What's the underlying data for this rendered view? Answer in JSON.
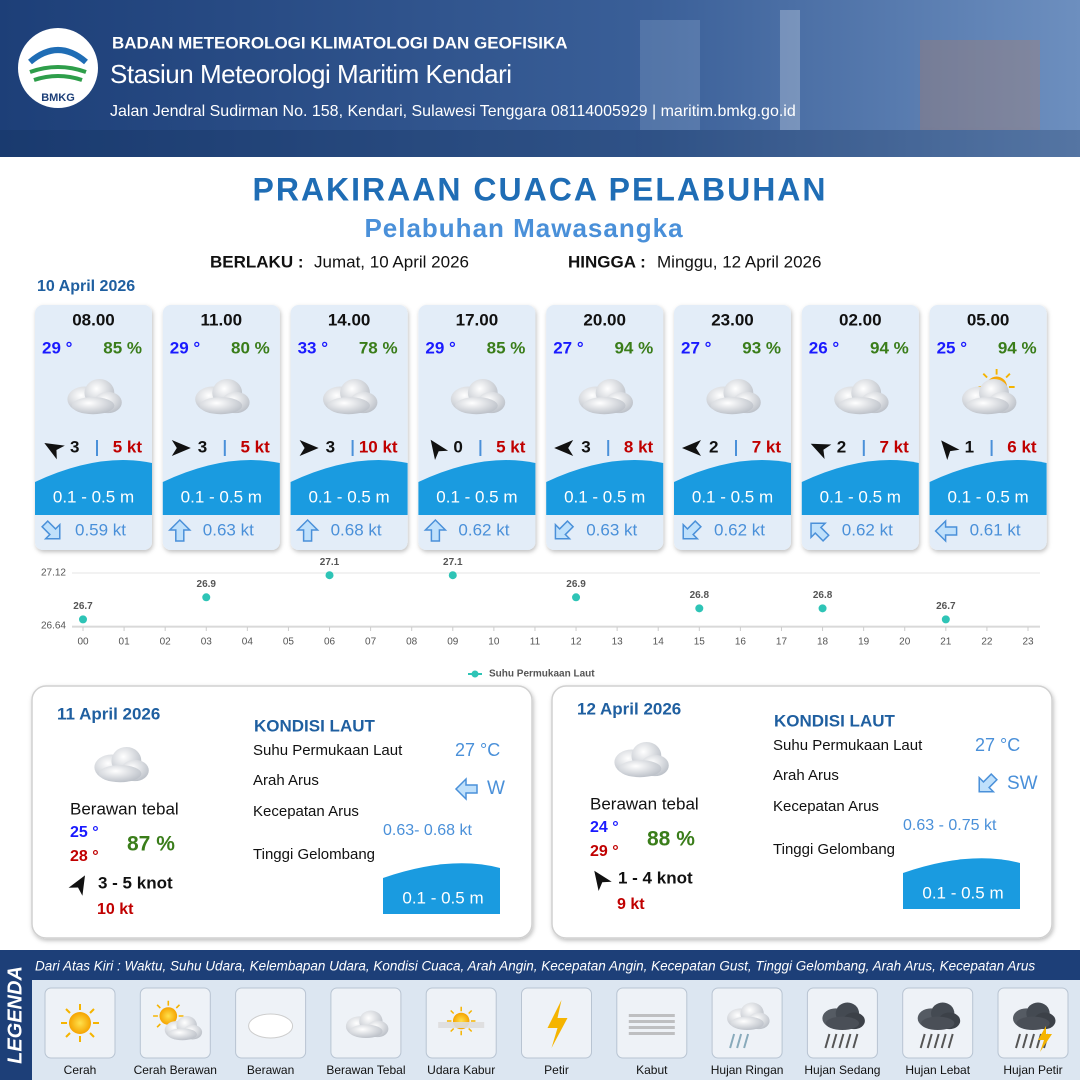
{
  "header": {
    "agency": "BADAN METEOROLOGI KLIMATOLOGI DAN GEOFISIKA",
    "station": "Stasiun Meteorologi Maritim Kendari",
    "address": "Jalan Jendral Sudirman No. 158, Kendari, Sulawesi Tenggara  08114005929 | maritim.bmkg.go.id",
    "logo_text": "BMKG"
  },
  "title": "PRAKIRAAN CUACA PELABUHAN",
  "subtitle": "Pelabuhan Mawasangka",
  "validity": {
    "from_label": "BERLAKU :",
    "from": "Jumat, 10 April 2026",
    "to_label": "HINGGA :",
    "to": "Minggu, 12 April 2026"
  },
  "day1": {
    "date": "10 April 2026",
    "forecasts": [
      {
        "time": "08.00",
        "temp": "29 °",
        "humidity": "85 %",
        "wind": "3",
        "gust": "5 kt",
        "wave": "0.1 - 0.5 m",
        "current": "0.59 kt"
      },
      {
        "time": "11.00",
        "temp": "29 °",
        "humidity": "80 %",
        "wind": "3",
        "gust": "5 kt",
        "wave": "0.1 - 0.5 m",
        "current": "0.63 kt"
      },
      {
        "time": "14.00",
        "temp": "33 °",
        "humidity": "78 %",
        "wind": "3",
        "gust": "10 kt",
        "wave": "0.1 - 0.5 m",
        "current": "0.68 kt"
      },
      {
        "time": "17.00",
        "temp": "29 °",
        "humidity": "85 %",
        "wind": "0",
        "gust": "5 kt",
        "wave": "0.1 - 0.5 m",
        "current": "0.62 kt"
      },
      {
        "time": "20.00",
        "temp": "27 °",
        "humidity": "94 %",
        "wind": "3",
        "gust": "8 kt",
        "wave": "0.1 - 0.5 m",
        "current": "0.63 kt"
      },
      {
        "time": "23.00",
        "temp": "27 °",
        "humidity": "93 %",
        "wind": "2",
        "gust": "7 kt",
        "wave": "0.1 - 0.5 m",
        "current": "0.62 kt"
      },
      {
        "time": "02.00",
        "temp": "26 °",
        "humidity": "94 %",
        "wind": "2",
        "gust": "7 kt",
        "wave": "0.1 - 0.5 m",
        "current": "0.62 kt"
      },
      {
        "time": "05.00",
        "temp": "25 °",
        "humidity": "94 %",
        "wind": "1",
        "gust": "6 kt",
        "wave": "0.1 - 0.5 m",
        "current": "0.61 kt"
      }
    ]
  },
  "chart_data": {
    "type": "scatter",
    "x": [
      0,
      3,
      6,
      9,
      12,
      15,
      18,
      21
    ],
    "series": [
      {
        "name": "Suhu Permukaan Laut",
        "color": "#2ec4b6",
        "values": [
          26.7,
          26.9,
          27.1,
          27.1,
          26.9,
          26.8,
          26.8,
          26.7
        ]
      }
    ],
    "ylim": [
      26.64,
      27.12
    ],
    "yticks": [
      26.64,
      27.12
    ],
    "xlim": [
      0,
      23
    ],
    "xticks": [
      {
        "value": 0,
        "label": "00"
      },
      {
        "value": 1,
        "label": "01"
      },
      {
        "value": 2,
        "label": "02"
      },
      {
        "value": 3,
        "label": "03"
      },
      {
        "value": 4,
        "label": "04"
      },
      {
        "value": 5,
        "label": "05"
      },
      {
        "value": 6,
        "label": "06"
      },
      {
        "value": 7,
        "label": "07"
      },
      {
        "value": 8,
        "label": "08"
      },
      {
        "value": 9,
        "label": "09"
      },
      {
        "value": 10,
        "label": "10"
      },
      {
        "value": 11,
        "label": "11"
      },
      {
        "value": 12,
        "label": "12"
      },
      {
        "value": 13,
        "label": "13"
      },
      {
        "value": 14,
        "label": "14"
      },
      {
        "value": 15,
        "label": "15"
      },
      {
        "value": 16,
        "label": "16"
      },
      {
        "value": 17,
        "label": "17"
      },
      {
        "value": 18,
        "label": "18"
      },
      {
        "value": 19,
        "label": "19"
      },
      {
        "value": 20,
        "label": "20"
      },
      {
        "value": 21,
        "label": "21"
      },
      {
        "value": 22,
        "label": "22"
      },
      {
        "value": 23,
        "label": "23"
      }
    ],
    "grid": true,
    "legend": "bottom"
  },
  "days": [
    {
      "date": "11 April 2026",
      "condition": "Berawan tebal",
      "temp_min": "25 °",
      "temp_max": "28 °",
      "humidity": "87 %",
      "wind": "3  - 5 knot",
      "gust": "10 kt",
      "sea_title": "KONDISI LAUT",
      "sea": [
        {
          "label": "Suhu Permukaan Laut",
          "value": "27 °C"
        },
        {
          "label": "Arah Arus",
          "value": "W"
        },
        {
          "label": "Kecepatan Arus",
          "value": "0.63- 0.68 kt"
        },
        {
          "label": "Tinggi Gelombang",
          "value": "0.1 - 0.5 m"
        }
      ]
    },
    {
      "date": "12 April 2026",
      "condition": "Berawan tebal",
      "temp_min": "24 °",
      "temp_max": "29 °",
      "humidity": "88 %",
      "wind": "1  - 4 knot",
      "gust": "9 kt",
      "sea_title": "KONDISI LAUT",
      "sea": [
        {
          "label": "Suhu Permukaan Laut",
          "value": "27 °C"
        },
        {
          "label": "Arah Arus",
          "value": "SW"
        },
        {
          "label": "Kecepatan Arus",
          "value": "0.63  - 0.75 kt"
        },
        {
          "label": "Tinggi Gelombang",
          "value": "0.1 - 0.5 m"
        }
      ]
    }
  ],
  "legend": {
    "title": "LEGENDA",
    "description": "Dari Atas Kiri : Waktu, Suhu Udara, Kelembapan Udara, Kondisi Cuaca, Arah Angin, Kecepatan Angin, Kecepatan Gust, Tinggi Gelombang, Arah Arus, Kecepatan Arus",
    "items": [
      "Cerah",
      "Cerah Berawan",
      "Berawan",
      "Berawan Tebal",
      "Udara Kabur",
      "Petir",
      "Kabut",
      "Hujan Ringan",
      "Hujan Sedang",
      "Hujan Lebat",
      "Hujan Petir"
    ]
  }
}
